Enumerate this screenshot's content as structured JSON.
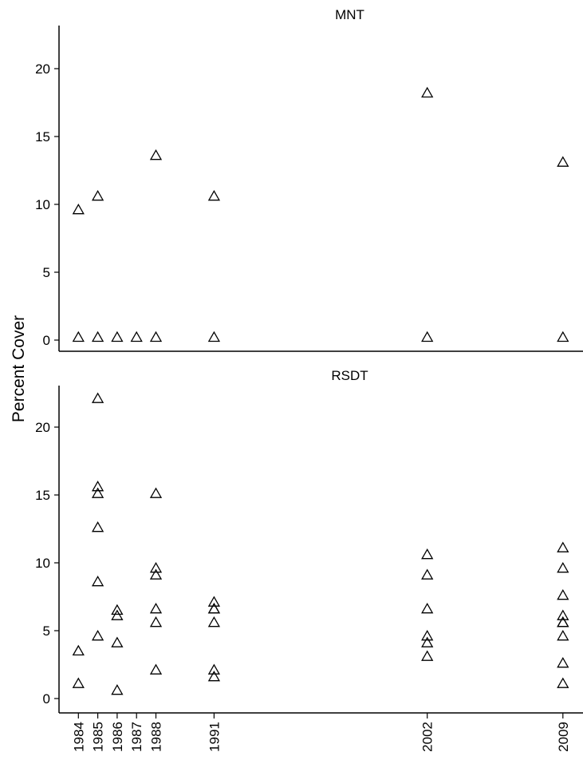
{
  "chart_data": [
    {
      "type": "scatter",
      "title": "MNT",
      "marker": "open-triangle",
      "ylim": [
        -0.5,
        23
      ],
      "yticks": [
        0,
        5,
        10,
        15,
        20
      ],
      "x": [
        1984,
        1984,
        1985,
        1985,
        1986,
        1987,
        1988,
        1988,
        1991,
        1991,
        2002,
        2002,
        2009,
        2009
      ],
      "y": [
        0.2,
        9.6,
        0.2,
        10.6,
        0.2,
        0.2,
        0.2,
        13.6,
        0.2,
        10.6,
        0.2,
        18.2,
        0.2,
        13.1
      ]
    },
    {
      "type": "scatter",
      "title": "RSDT",
      "marker": "open-triangle",
      "ylim": [
        -0.5,
        23
      ],
      "yticks": [
        0,
        5,
        10,
        15,
        20
      ],
      "x": [
        1984,
        1984,
        1985,
        1985,
        1985,
        1985,
        1985,
        1985,
        1986,
        1986,
        1986,
        1986,
        1988,
        1988,
        1988,
        1988,
        1988,
        1988,
        1991,
        1991,
        1991,
        1991,
        1991,
        1991,
        2002,
        2002,
        2002,
        2002,
        2002,
        2002,
        2009,
        2009,
        2009,
        2009,
        2009,
        2009,
        2009,
        2009,
        2009
      ],
      "y": [
        1.1,
        3.5,
        4.6,
        8.6,
        12.6,
        15.1,
        15.6,
        22.1,
        0.6,
        4.1,
        6.1,
        6.5,
        2.1,
        5.6,
        6.6,
        9.1,
        9.6,
        15.1,
        1.6,
        2.1,
        5.6,
        6.6,
        7.1,
        6.6,
        3.1,
        4.1,
        4.6,
        6.6,
        9.1,
        10.6,
        1.1,
        2.6,
        4.6,
        5.6,
        6.1,
        7.6,
        9.6,
        11.1,
        5.6
      ]
    }
  ],
  "ylabel": "Percent Cover",
  "x_ticks": [
    1984,
    1985,
    1986,
    1987,
    1988,
    1991,
    2002,
    2009
  ],
  "xlim": [
    1983,
    2010
  ]
}
